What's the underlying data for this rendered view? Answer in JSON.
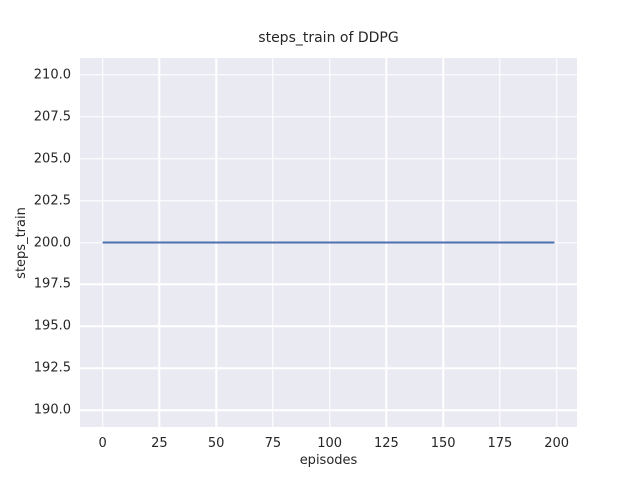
{
  "figure": {
    "background": "#ffffff"
  },
  "chart_data": {
    "type": "line",
    "title": "steps_train of DDPG",
    "xlabel": "episodes",
    "ylabel": "steps_train",
    "xlim": [
      -9.95,
      208.95
    ],
    "ylim": [
      189,
      211
    ],
    "x_tick_values": [
      0,
      25,
      50,
      75,
      100,
      125,
      150,
      175,
      200
    ],
    "x_tick_labels": [
      "0",
      "25",
      "50",
      "75",
      "100",
      "125",
      "150",
      "175",
      "200"
    ],
    "y_tick_values": [
      190,
      192.5,
      195,
      197.5,
      200,
      202.5,
      205,
      207.5,
      210
    ],
    "y_tick_labels": [
      "190.0",
      "192.5",
      "195.0",
      "197.5",
      "200.0",
      "202.5",
      "205.0",
      "207.5",
      "210.0"
    ],
    "grid": true,
    "legend": null,
    "series": [
      {
        "name": "steps_train",
        "color": "#4c72b0",
        "line_width": 2,
        "x": [
          0,
          199
        ],
        "y": [
          200,
          200
        ],
        "note": "constant value 200 for every episode from 0 to 199"
      }
    ],
    "style": {
      "plot_bg": "#eaeaf2",
      "grid_color": "#ffffff",
      "text_color": "#262626"
    }
  }
}
